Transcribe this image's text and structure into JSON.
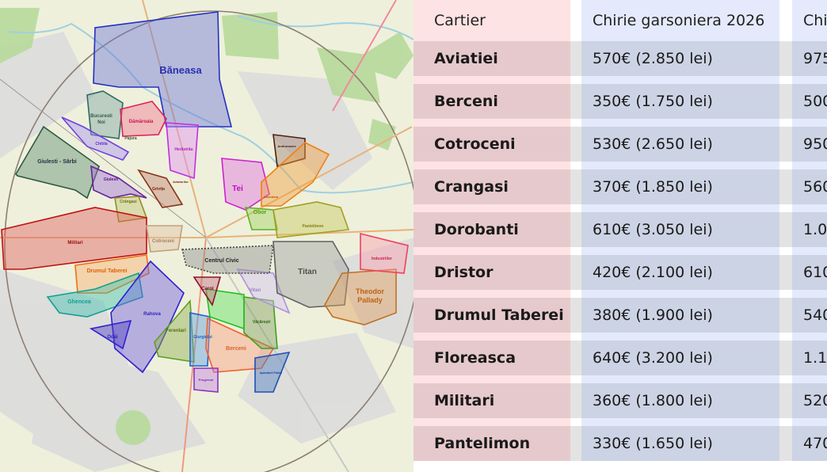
{
  "map": {
    "labels": {
      "baneasa": "Băneasa",
      "bucuresti_noi_1": "Bucuresti",
      "bucuresti_noi_2": "Noi",
      "damaroaia": "Dămăroaia",
      "chitila": "Chitila",
      "pajura": "Pajura",
      "giulesti_sarbi": "Giulesti - Sârbi",
      "giulesti": "Giulesti",
      "herastrau": "Herăstrău",
      "tei": "Tei",
      "andronache": "Andronache",
      "colentina": "Colentina",
      "obor": "Obor",
      "pantelimon": "Pantelimon",
      "militari": "Militari",
      "cotroceni": "Cotroceni",
      "drumul_taberei": "Drumul Taberei",
      "ghencea": "Ghencea",
      "rahova": "Rahova",
      "odai": "Odăi",
      "ferentari": "Ferentari",
      "giurgiului": "Giurgiului",
      "berceni": "Berceni",
      "vacaresti": "Văcărești",
      "centrul_civic": "Centrul Civic",
      "carol": "Carol",
      "vitan": "Vitan",
      "titan": "Titan",
      "theodor_1": "Theodor",
      "theodor_2": "Pallady",
      "industriilor": "Industriilor",
      "progresul": "Progresul",
      "aparatorii": "Aparatorii Patriei",
      "crangasi": "Crângasi",
      "grivita": "Grivița",
      "aviatorilor": "Aviatorilor"
    }
  },
  "table": {
    "headers": [
      "Cartier",
      "Chirie garsoniera 2026",
      "Chi"
    ],
    "rows": [
      {
        "cartier": "Aviatiei",
        "garsoniera": "570€ (2.850 lei)",
        "col3": "975"
      },
      {
        "cartier": "Berceni",
        "garsoniera": "350€ (1.750 lei)",
        "col3": "500"
      },
      {
        "cartier": "Cotroceni",
        "garsoniera": "530€ (2.650 lei)",
        "col3": "950"
      },
      {
        "cartier": "Crangasi",
        "garsoniera": "370€ (1.850 lei)",
        "col3": "560"
      },
      {
        "cartier": "Dorobanti",
        "garsoniera": "610€ (3.050 lei)",
        "col3": "1.0"
      },
      {
        "cartier": "Dristor",
        "garsoniera": "420€ (2.100 lei)",
        "col3": "610"
      },
      {
        "cartier": "Drumul Taberei",
        "garsoniera": "380€ (1.900 lei)",
        "col3": "540"
      },
      {
        "cartier": "Floreasca",
        "garsoniera": "640€ (3.200 lei)",
        "col3": "1.10"
      },
      {
        "cartier": "Militari",
        "garsoniera": "360€ (1.800 lei)",
        "col3": "520"
      },
      {
        "cartier": "Pantelimon",
        "garsoniera": "330€ (1.650 lei)",
        "col3": "470"
      }
    ]
  }
}
